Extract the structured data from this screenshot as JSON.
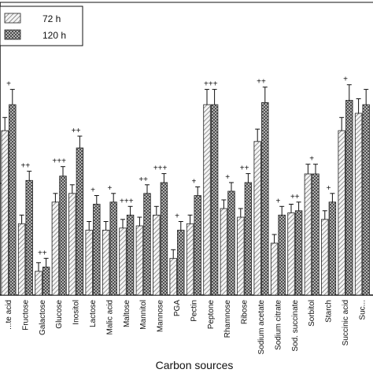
{
  "chart_data": {
    "type": "bar",
    "xlabel": "Carbon sources",
    "ylabel": "",
    "ylim": [
      0,
      100
    ],
    "grid": false,
    "legend_position": "top-left",
    "colors": {
      "series_72h_stroke": "#333333",
      "series_120h_stroke": "#222222",
      "axis": "#111111"
    },
    "categories": [
      "...te acid",
      "Fructose",
      "Galactose",
      "Glucose",
      "Inositol",
      "Lactose",
      "Malic acid",
      "Maltose",
      "Mannitol",
      "Mannose",
      "PGA",
      "Pectin",
      "Peptone",
      "Rhamnose",
      "Ribose",
      "Sodium acetate",
      "Sodium citrate",
      "Sod. succinate",
      "Sorbitol",
      "Starch",
      "Succinic acid",
      "Suc..."
    ],
    "significance": [
      "+",
      "++",
      "++",
      "+++",
      "++",
      "+",
      "+",
      "+++",
      "++",
      "+++",
      "+",
      "+",
      "+++",
      "+",
      "++",
      "++",
      "+",
      "++",
      "+",
      "+",
      "+",
      ""
    ],
    "series": [
      {
        "name": "72 h",
        "pattern": "diagonal-hatch",
        "values": [
          76,
          33,
          11,
          43,
          47,
          30,
          30,
          31,
          32,
          37,
          17,
          33,
          88,
          40,
          36,
          71,
          24,
          38,
          56,
          35,
          76,
          84
        ]
      },
      {
        "name": "120 h",
        "pattern": "cross-hatch",
        "values": [
          88,
          53,
          13,
          55,
          68,
          42,
          43,
          37,
          47,
          52,
          30,
          46,
          88,
          48,
          52,
          89,
          37,
          39,
          56,
          43,
          90,
          88
        ]
      }
    ]
  }
}
